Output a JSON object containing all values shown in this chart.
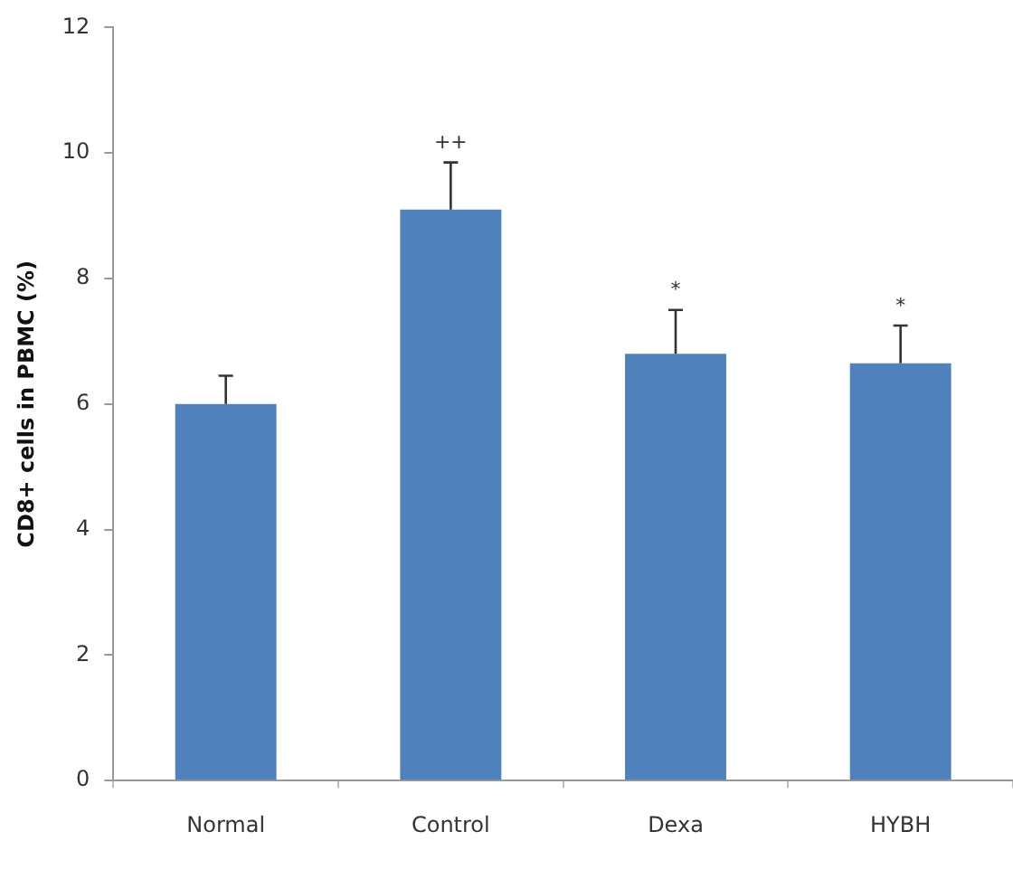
{
  "chart_data": {
    "type": "bar",
    "ylabel": "CD8+ cells in PBMC (%)",
    "categories": [
      "Normal",
      "Control",
      "Dexa",
      "HYBH"
    ],
    "values": [
      6.0,
      9.1,
      6.8,
      6.65
    ],
    "errors": [
      0.45,
      0.75,
      0.7,
      0.6
    ],
    "color": "#4f81bd",
    "ylim": [
      0,
      12
    ],
    "yticks": [
      0,
      2,
      4,
      6,
      8,
      10,
      12
    ],
    "grid": false,
    "legend": false,
    "annotations": [
      {
        "text": "++",
        "x": "Control",
        "y": 9.85
      },
      {
        "text": "*",
        "x": "Dexa",
        "y": 7.5
      },
      {
        "text": "*",
        "x": "HYBH",
        "y": 7.25
      }
    ]
  }
}
